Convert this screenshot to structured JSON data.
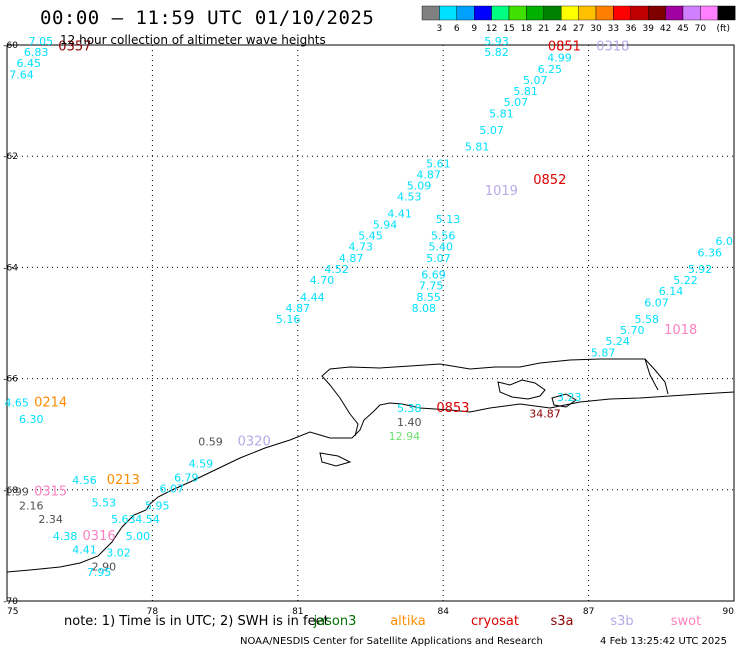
{
  "header": {
    "title": "00:00 – 11:59 UTC 01/10/2025",
    "subtitle": "12 hour collection of altimeter wave heights"
  },
  "legend": {
    "unit": "(ft)",
    "bins": [
      {
        "label": "",
        "color": "#808080"
      },
      {
        "label": "3",
        "color": "#00e0ff"
      },
      {
        "label": "6",
        "color": "#00a0ff"
      },
      {
        "label": "9",
        "color": "#0000ff"
      },
      {
        "label": "12",
        "color": "#00ff80"
      },
      {
        "label": "15",
        "color": "#40e000"
      },
      {
        "label": "18",
        "color": "#00b000"
      },
      {
        "label": "21",
        "color": "#008000"
      },
      {
        "label": "24",
        "color": "#ffff00"
      },
      {
        "label": "27",
        "color": "#ffc000"
      },
      {
        "label": "30",
        "color": "#ff8000"
      },
      {
        "label": "33",
        "color": "#ff0000"
      },
      {
        "label": "36",
        "color": "#c00000"
      },
      {
        "label": "39",
        "color": "#800000"
      },
      {
        "label": "42",
        "color": "#a000a0"
      },
      {
        "label": "45",
        "color": "#d080ff"
      },
      {
        "label": "70",
        "color": "#ff80ff"
      },
      {
        "label": "",
        "color": "#000000"
      }
    ]
  },
  "axes": {
    "x_ticks": [
      "75",
      "78",
      "81",
      "84",
      "87",
      "90"
    ],
    "y_ticks": [
      "-60",
      "-62",
      "-64",
      "-66",
      "-68",
      "-70"
    ]
  },
  "map": {
    "lon_range": [
      75,
      90
    ],
    "lat_range": [
      -70,
      -60
    ],
    "times": [
      {
        "text": "0357",
        "color": "#8b0000",
        "lon": 76.4,
        "lat": -60.1
      },
      {
        "text": "0851",
        "color": "#dd0000",
        "lon": 86.5,
        "lat": -60.1
      },
      {
        "text": "0318",
        "color": "#b8a8e8",
        "lon": 87.5,
        "lat": -60.1
      },
      {
        "text": "0852",
        "color": "#dd0000",
        "lon": 86.2,
        "lat": -62.5
      },
      {
        "text": "1019",
        "color": "#b8a8e8",
        "lon": 85.2,
        "lat": -62.7
      },
      {
        "text": "1018",
        "color": "#ff80c0",
        "lon": 88.9,
        "lat": -65.2
      },
      {
        "text": "0214",
        "color": "#ff8c00",
        "lon": 75.9,
        "lat": -66.5
      },
      {
        "text": "0853",
        "color": "#dd0000",
        "lon": 84.2,
        "lat": -66.6
      },
      {
        "text": "0320",
        "color": "#b8a8e8",
        "lon": 80.1,
        "lat": -67.2
      },
      {
        "text": "0213",
        "color": "#ff8c00",
        "lon": 77.4,
        "lat": -67.9
      },
      {
        "text": "0315",
        "color": "#ff80c0",
        "lon": 75.9,
        "lat": -68.1
      },
      {
        "text": "0316",
        "color": "#ff80c0",
        "lon": 76.9,
        "lat": -68.9
      }
    ],
    "values": [
      {
        "text": "7.05",
        "color": "#00e0ff",
        "lon": 75.7,
        "lat": -60.0
      },
      {
        "text": "6.83",
        "color": "#00e0ff",
        "lon": 75.6,
        "lat": -60.2
      },
      {
        "text": "6.45",
        "color": "#00e0ff",
        "lon": 75.45,
        "lat": -60.4
      },
      {
        "text": "7.64",
        "color": "#00e0ff",
        "lon": 75.3,
        "lat": -60.6
      },
      {
        "text": "5.93",
        "color": "#00e0ff",
        "lon": 85.1,
        "lat": -60.0
      },
      {
        "text": "5.82",
        "color": "#00e0ff",
        "lon": 85.1,
        "lat": -60.2
      },
      {
        "text": "4.99",
        "color": "#00e0ff",
        "lon": 86.4,
        "lat": -60.3
      },
      {
        "text": "6.25",
        "color": "#00e0ff",
        "lon": 86.2,
        "lat": -60.5
      },
      {
        "text": "5.07",
        "color": "#00e0ff",
        "lon": 85.9,
        "lat": -60.7
      },
      {
        "text": "5.81",
        "color": "#00e0ff",
        "lon": 85.7,
        "lat": -60.9
      },
      {
        "text": "5.07",
        "color": "#00e0ff",
        "lon": 85.5,
        "lat": -61.1
      },
      {
        "text": "5.81",
        "color": "#00e0ff",
        "lon": 85.2,
        "lat": -61.3
      },
      {
        "text": "5.07",
        "color": "#00e0ff",
        "lon": 85.0,
        "lat": -61.6
      },
      {
        "text": "5.81",
        "color": "#00e0ff",
        "lon": 84.7,
        "lat": -61.9
      },
      {
        "text": "5.61",
        "color": "#00e0ff",
        "lon": 83.9,
        "lat": -62.2
      },
      {
        "text": "4.87",
        "color": "#00e0ff",
        "lon": 83.7,
        "lat": -62.4
      },
      {
        "text": "5.09",
        "color": "#00e0ff",
        "lon": 83.5,
        "lat": -62.6
      },
      {
        "text": "4.53",
        "color": "#00e0ff",
        "lon": 83.3,
        "lat": -62.8
      },
      {
        "text": "4.41",
        "color": "#00e0ff",
        "lon": 83.1,
        "lat": -63.1
      },
      {
        "text": "5.94",
        "color": "#00e0ff",
        "lon": 82.8,
        "lat": -63.3
      },
      {
        "text": "5.45",
        "color": "#00e0ff",
        "lon": 82.5,
        "lat": -63.5
      },
      {
        "text": "4.73",
        "color": "#00e0ff",
        "lon": 82.3,
        "lat": -63.7
      },
      {
        "text": "4.87",
        "color": "#00e0ff",
        "lon": 82.1,
        "lat": -63.9
      },
      {
        "text": "4.52",
        "color": "#00e0ff",
        "lon": 81.8,
        "lat": -64.1
      },
      {
        "text": "4.70",
        "color": "#00e0ff",
        "lon": 81.5,
        "lat": -64.3
      },
      {
        "text": "4.44",
        "color": "#00e0ff",
        "lon": 81.3,
        "lat": -64.6
      },
      {
        "text": "4.87",
        "color": "#00e0ff",
        "lon": 81.0,
        "lat": -64.8
      },
      {
        "text": "5.16",
        "color": "#00e0ff",
        "lon": 80.8,
        "lat": -65.0
      },
      {
        "text": "5.13",
        "color": "#00e0ff",
        "lon": 84.1,
        "lat": -63.2
      },
      {
        "text": "5.56",
        "color": "#00e0ff",
        "lon": 84.0,
        "lat": -63.5
      },
      {
        "text": "5.40",
        "color": "#00e0ff",
        "lon": 83.95,
        "lat": -63.7
      },
      {
        "text": "5.07",
        "color": "#00e0ff",
        "lon": 83.9,
        "lat": -63.9
      },
      {
        "text": "6.69",
        "color": "#00e0ff",
        "lon": 83.8,
        "lat": -64.2
      },
      {
        "text": "7.75",
        "color": "#00e0ff",
        "lon": 83.75,
        "lat": -64.4
      },
      {
        "text": "8.55",
        "color": "#00e0ff",
        "lon": 83.7,
        "lat": -64.6
      },
      {
        "text": "8.08",
        "color": "#00e0ff",
        "lon": 83.6,
        "lat": -64.8
      },
      {
        "text": "6.0",
        "color": "#00e0ff",
        "lon": 89.8,
        "lat": -63.6
      },
      {
        "text": "6.36",
        "color": "#00e0ff",
        "lon": 89.5,
        "lat": -63.8
      },
      {
        "text": "5.92",
        "color": "#00e0ff",
        "lon": 89.3,
        "lat": -64.1
      },
      {
        "text": "5.22",
        "color": "#00e0ff",
        "lon": 89.0,
        "lat": -64.3
      },
      {
        "text": "6.14",
        "color": "#00e0ff",
        "lon": 88.7,
        "lat": -64.5
      },
      {
        "text": "6.07",
        "color": "#00e0ff",
        "lon": 88.4,
        "lat": -64.7
      },
      {
        "text": "5.58",
        "color": "#00e0ff",
        "lon": 88.2,
        "lat": -65.0
      },
      {
        "text": "5.70",
        "color": "#00e0ff",
        "lon": 87.9,
        "lat": -65.2
      },
      {
        "text": "5.24",
        "color": "#00e0ff",
        "lon": 87.6,
        "lat": -65.4
      },
      {
        "text": "5.87",
        "color": "#00e0ff",
        "lon": 87.3,
        "lat": -65.6
      },
      {
        "text": "5.38",
        "color": "#00e0ff",
        "lon": 83.3,
        "lat": -66.6
      },
      {
        "text": "1.40",
        "color": "#505050",
        "lon": 83.3,
        "lat": -66.85
      },
      {
        "text": "12.94",
        "color": "#70e070",
        "lon": 83.2,
        "lat": -67.1
      },
      {
        "text": "3.23",
        "color": "#00e0ff",
        "lon": 86.6,
        "lat": -66.4
      },
      {
        "text": "34.87",
        "color": "#8b0000",
        "lon": 86.1,
        "lat": -66.7
      },
      {
        "text": "4.65",
        "color": "#00e0ff",
        "lon": 75.2,
        "lat": -66.5
      },
      {
        "text": "6.30",
        "color": "#00e0ff",
        "lon": 75.5,
        "lat": -66.8
      },
      {
        "text": "0.59",
        "color": "#505050",
        "lon": 79.2,
        "lat": -67.2
      },
      {
        "text": "4.59",
        "color": "#00e0ff",
        "lon": 79.0,
        "lat": -67.6
      },
      {
        "text": "6.79",
        "color": "#00e0ff",
        "lon": 78.7,
        "lat": -67.85
      },
      {
        "text": "6.07",
        "color": "#00e0ff",
        "lon": 78.4,
        "lat": -68.05
      },
      {
        "text": "4.56",
        "color": "#00e0ff",
        "lon": 76.6,
        "lat": -67.9
      },
      {
        "text": "5.95",
        "color": "#00e0ff",
        "lon": 78.1,
        "lat": -68.35
      },
      {
        "text": "5.53",
        "color": "#00e0ff",
        "lon": 77.0,
        "lat": -68.3
      },
      {
        "text": "5.63",
        "color": "#00e0ff",
        "lon": 77.4,
        "lat": -68.6
      },
      {
        "text": "4.54",
        "color": "#00e0ff",
        "lon": 77.9,
        "lat": -68.6
      },
      {
        "text": "5.00",
        "color": "#00e0ff",
        "lon": 77.7,
        "lat": -68.9
      },
      {
        "text": "4.38",
        "color": "#00e0ff",
        "lon": 76.2,
        "lat": -68.9
      },
      {
        "text": "4.41",
        "color": "#00e0ff",
        "lon": 76.6,
        "lat": -69.15
      },
      {
        "text": "3.02",
        "color": "#00e0ff",
        "lon": 77.3,
        "lat": -69.2
      },
      {
        "text": "2.90",
        "color": "#505050",
        "lon": 77.0,
        "lat": -69.45
      },
      {
        "text": "7.95",
        "color": "#00e0ff",
        "lon": 76.9,
        "lat": -69.55
      },
      {
        "text": "1.99",
        "color": "#505050",
        "lon": 75.2,
        "lat": -68.1
      },
      {
        "text": "2.16",
        "color": "#505050",
        "lon": 75.5,
        "lat": -68.35
      },
      {
        "text": "2.34",
        "color": "#505050",
        "lon": 75.9,
        "lat": -68.6
      }
    ]
  },
  "footer": {
    "note": "note:  1) Time is in UTC;  2) SWH is in feet",
    "satellites": [
      {
        "name": "jason3",
        "color": "#007000"
      },
      {
        "name": "altika",
        "color": "#ff8c00"
      },
      {
        "name": "cryosat",
        "color": "#dd0000"
      },
      {
        "name": "s3a",
        "color": "#8b0000"
      },
      {
        "name": "s3b",
        "color": "#b8a8e8"
      },
      {
        "name": "swot",
        "color": "#ff80c0"
      }
    ],
    "credit": "NOAA/NESDIS Center for Satellite Applications and Research",
    "timestamp": "4 Feb 13:25:42 UTC 2025"
  }
}
